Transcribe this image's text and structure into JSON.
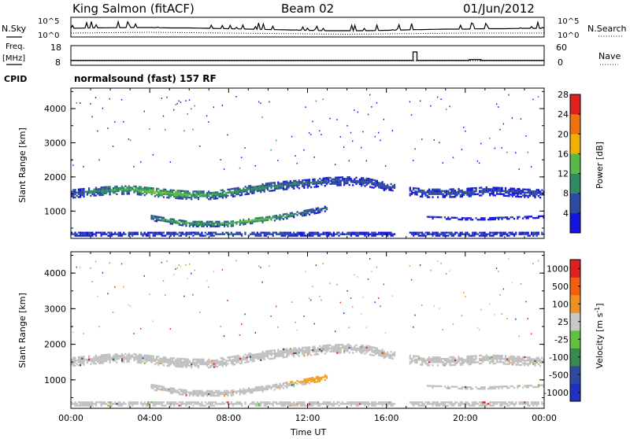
{
  "chart_data": [
    {
      "type": "line",
      "panel": "noise",
      "left_label": "N.Sky",
      "left_ticks": [
        "10^5",
        "10^0"
      ],
      "right_label": "N.Search",
      "right_ticks": [
        "10^5",
        "10^0"
      ],
      "series": [
        {
          "style": "solid",
          "x_hours": [
            0,
            1,
            2,
            3,
            4,
            5,
            6,
            7,
            8,
            9,
            10,
            11,
            12,
            13,
            14,
            15,
            16,
            17,
            18,
            19,
            20,
            21,
            22,
            23,
            24
          ],
          "log10_values": [
            2.2,
            2.3,
            2.35,
            2.4,
            2.4,
            2.3,
            2.3,
            2.2,
            2.1,
            2.0,
            1.9,
            1.8,
            1.7,
            1.6,
            1.6,
            1.6,
            1.7,
            1.8,
            1.9,
            2.0,
            2.0,
            2.1,
            2.1,
            2.2,
            2.2
          ]
        },
        {
          "style": "dotted",
          "x_hours": [
            0,
            2,
            4,
            6,
            8,
            10,
            12,
            14,
            16,
            18,
            20,
            22,
            24
          ],
          "log10_values": [
            1.0,
            1.1,
            1.2,
            1.1,
            1.0,
            0.9,
            0.8,
            0.7,
            0.8,
            0.9,
            1.0,
            1.0,
            1.0
          ]
        }
      ],
      "ylim_log10": [
        0,
        5
      ]
    },
    {
      "type": "line",
      "panel": "freq_nave",
      "left_label": "Freq.",
      "left_unit": "[MHz]",
      "left_ticks": [
        "18",
        "8"
      ],
      "right_label": "Nave",
      "right_ticks": [
        "60",
        "0"
      ],
      "ylim_freq": [
        8,
        18
      ],
      "ylim_nave": [
        0,
        60
      ],
      "series": [
        {
          "name": "Freq",
          "style": "solid",
          "x_hours": [
            0,
            17.35,
            17.35,
            17.55,
            17.55,
            20.2,
            20.2,
            20.8,
            20.8,
            24
          ],
          "values": [
            10.5,
            10.5,
            14.8,
            14.8,
            10.5,
            10.5,
            10.9,
            10.9,
            10.5,
            10.5
          ]
        },
        {
          "name": "Nave",
          "style": "dotted",
          "x_hours": [
            0,
            24
          ],
          "values": [
            14,
            14
          ]
        }
      ]
    },
    {
      "type": "heatmap",
      "panel": "power",
      "cpid_label": "CPID",
      "cpid_text": "normalsound (fast) 157 RF",
      "ylabel": "Slant Range [km]",
      "ylim": [
        200,
        4600
      ],
      "yticks": [
        1000,
        2000,
        3000,
        4000
      ],
      "colorbar_label": "Power [dB]",
      "colorbar_ticks": [
        "4",
        "8",
        "12",
        "16",
        "20",
        "24",
        "28"
      ],
      "colorbar_colors": [
        "#1414e0",
        "#2e4aa0",
        "#2e8a60",
        "#58b84a",
        "#f0b000",
        "#f07010",
        "#e02020"
      ],
      "bands": [
        {
          "name": "upper",
          "x_hours": [
            0,
            1,
            2,
            3,
            4,
            5,
            6,
            7,
            8,
            9,
            10,
            11,
            12,
            13,
            14,
            15,
            16,
            17,
            18,
            19,
            20,
            21,
            22,
            23,
            24
          ],
          "range_km": [
            1500,
            1560,
            1600,
            1620,
            1560,
            1500,
            1460,
            1460,
            1520,
            1620,
            1700,
            1760,
            1800,
            1860,
            1880,
            1840,
            1700,
            1580,
            1520,
            1520,
            1540,
            1580,
            1560,
            1520,
            1500
          ],
          "width_km": 260,
          "power_db": [
            6,
            9,
            12,
            13,
            15,
            15,
            14,
            12,
            11,
            10,
            10,
            9,
            8,
            7,
            6,
            6,
            6,
            6,
            6,
            6,
            6,
            5,
            5,
            5,
            5
          ]
        },
        {
          "name": "lower",
          "x_hours": [
            4,
            5,
            6,
            7,
            8,
            9,
            10,
            11,
            12,
            13
          ],
          "range_km": [
            800,
            700,
            620,
            620,
            620,
            700,
            760,
            860,
            960,
            1080
          ],
          "width_km": 170,
          "power_db": [
            9,
            12,
            12,
            11,
            13,
            16,
            14,
            11,
            9,
            7
          ]
        },
        {
          "name": "late-lower",
          "x_hours": [
            18,
            19,
            20,
            21,
            22,
            23,
            24
          ],
          "range_km": [
            800,
            780,
            760,
            760,
            780,
            800,
            820
          ],
          "width_km": 60,
          "power_db": [
            5,
            5,
            6,
            6,
            5,
            5,
            5
          ]
        },
        {
          "name": "bottom",
          "x_hours": [
            0,
            4,
            8,
            12,
            16,
            20,
            24
          ],
          "range_km": [
            320,
            320,
            320,
            320,
            320,
            320,
            320
          ],
          "width_km": 120,
          "power_db": [
            5,
            6,
            8,
            6,
            5,
            6,
            5
          ]
        }
      ],
      "gaps_hours": [
        [
          16.3,
          17.1
        ]
      ]
    },
    {
      "type": "heatmap",
      "panel": "velocity",
      "ylabel": "Slant Range [km]",
      "ylim": [
        200,
        4600
      ],
      "yticks": [
        1000,
        2000,
        3000,
        4000
      ],
      "xlabel": "Time UT",
      "xticks": [
        "00:00",
        "04:00",
        "08:00",
        "12:00",
        "16:00",
        "20:00",
        "00:00"
      ],
      "colorbar_label": "Velocity [m s",
      "colorbar_label_sup": "-1",
      "colorbar_label_end": "]",
      "colorbar_ticks": [
        "1000",
        "500",
        "100",
        "25",
        "-25",
        "-100",
        "-500",
        "-1000"
      ],
      "colorbar_colors": [
        "#2030c0",
        "#2e4aa0",
        "#3a8a50",
        "#60c040",
        "#c8c8c8",
        "#f09020",
        "#f06010",
        "#e02020"
      ],
      "bands": [
        {
          "name": "upper",
          "color": "#bdbdbd"
        },
        {
          "name": "lower",
          "color": "#bdbdbd"
        },
        {
          "name": "orange-patch",
          "x_hours": [
            9,
            13
          ],
          "range_km": [
            900,
            1200
          ],
          "color": "#f0a020"
        }
      ]
    }
  ]
}
